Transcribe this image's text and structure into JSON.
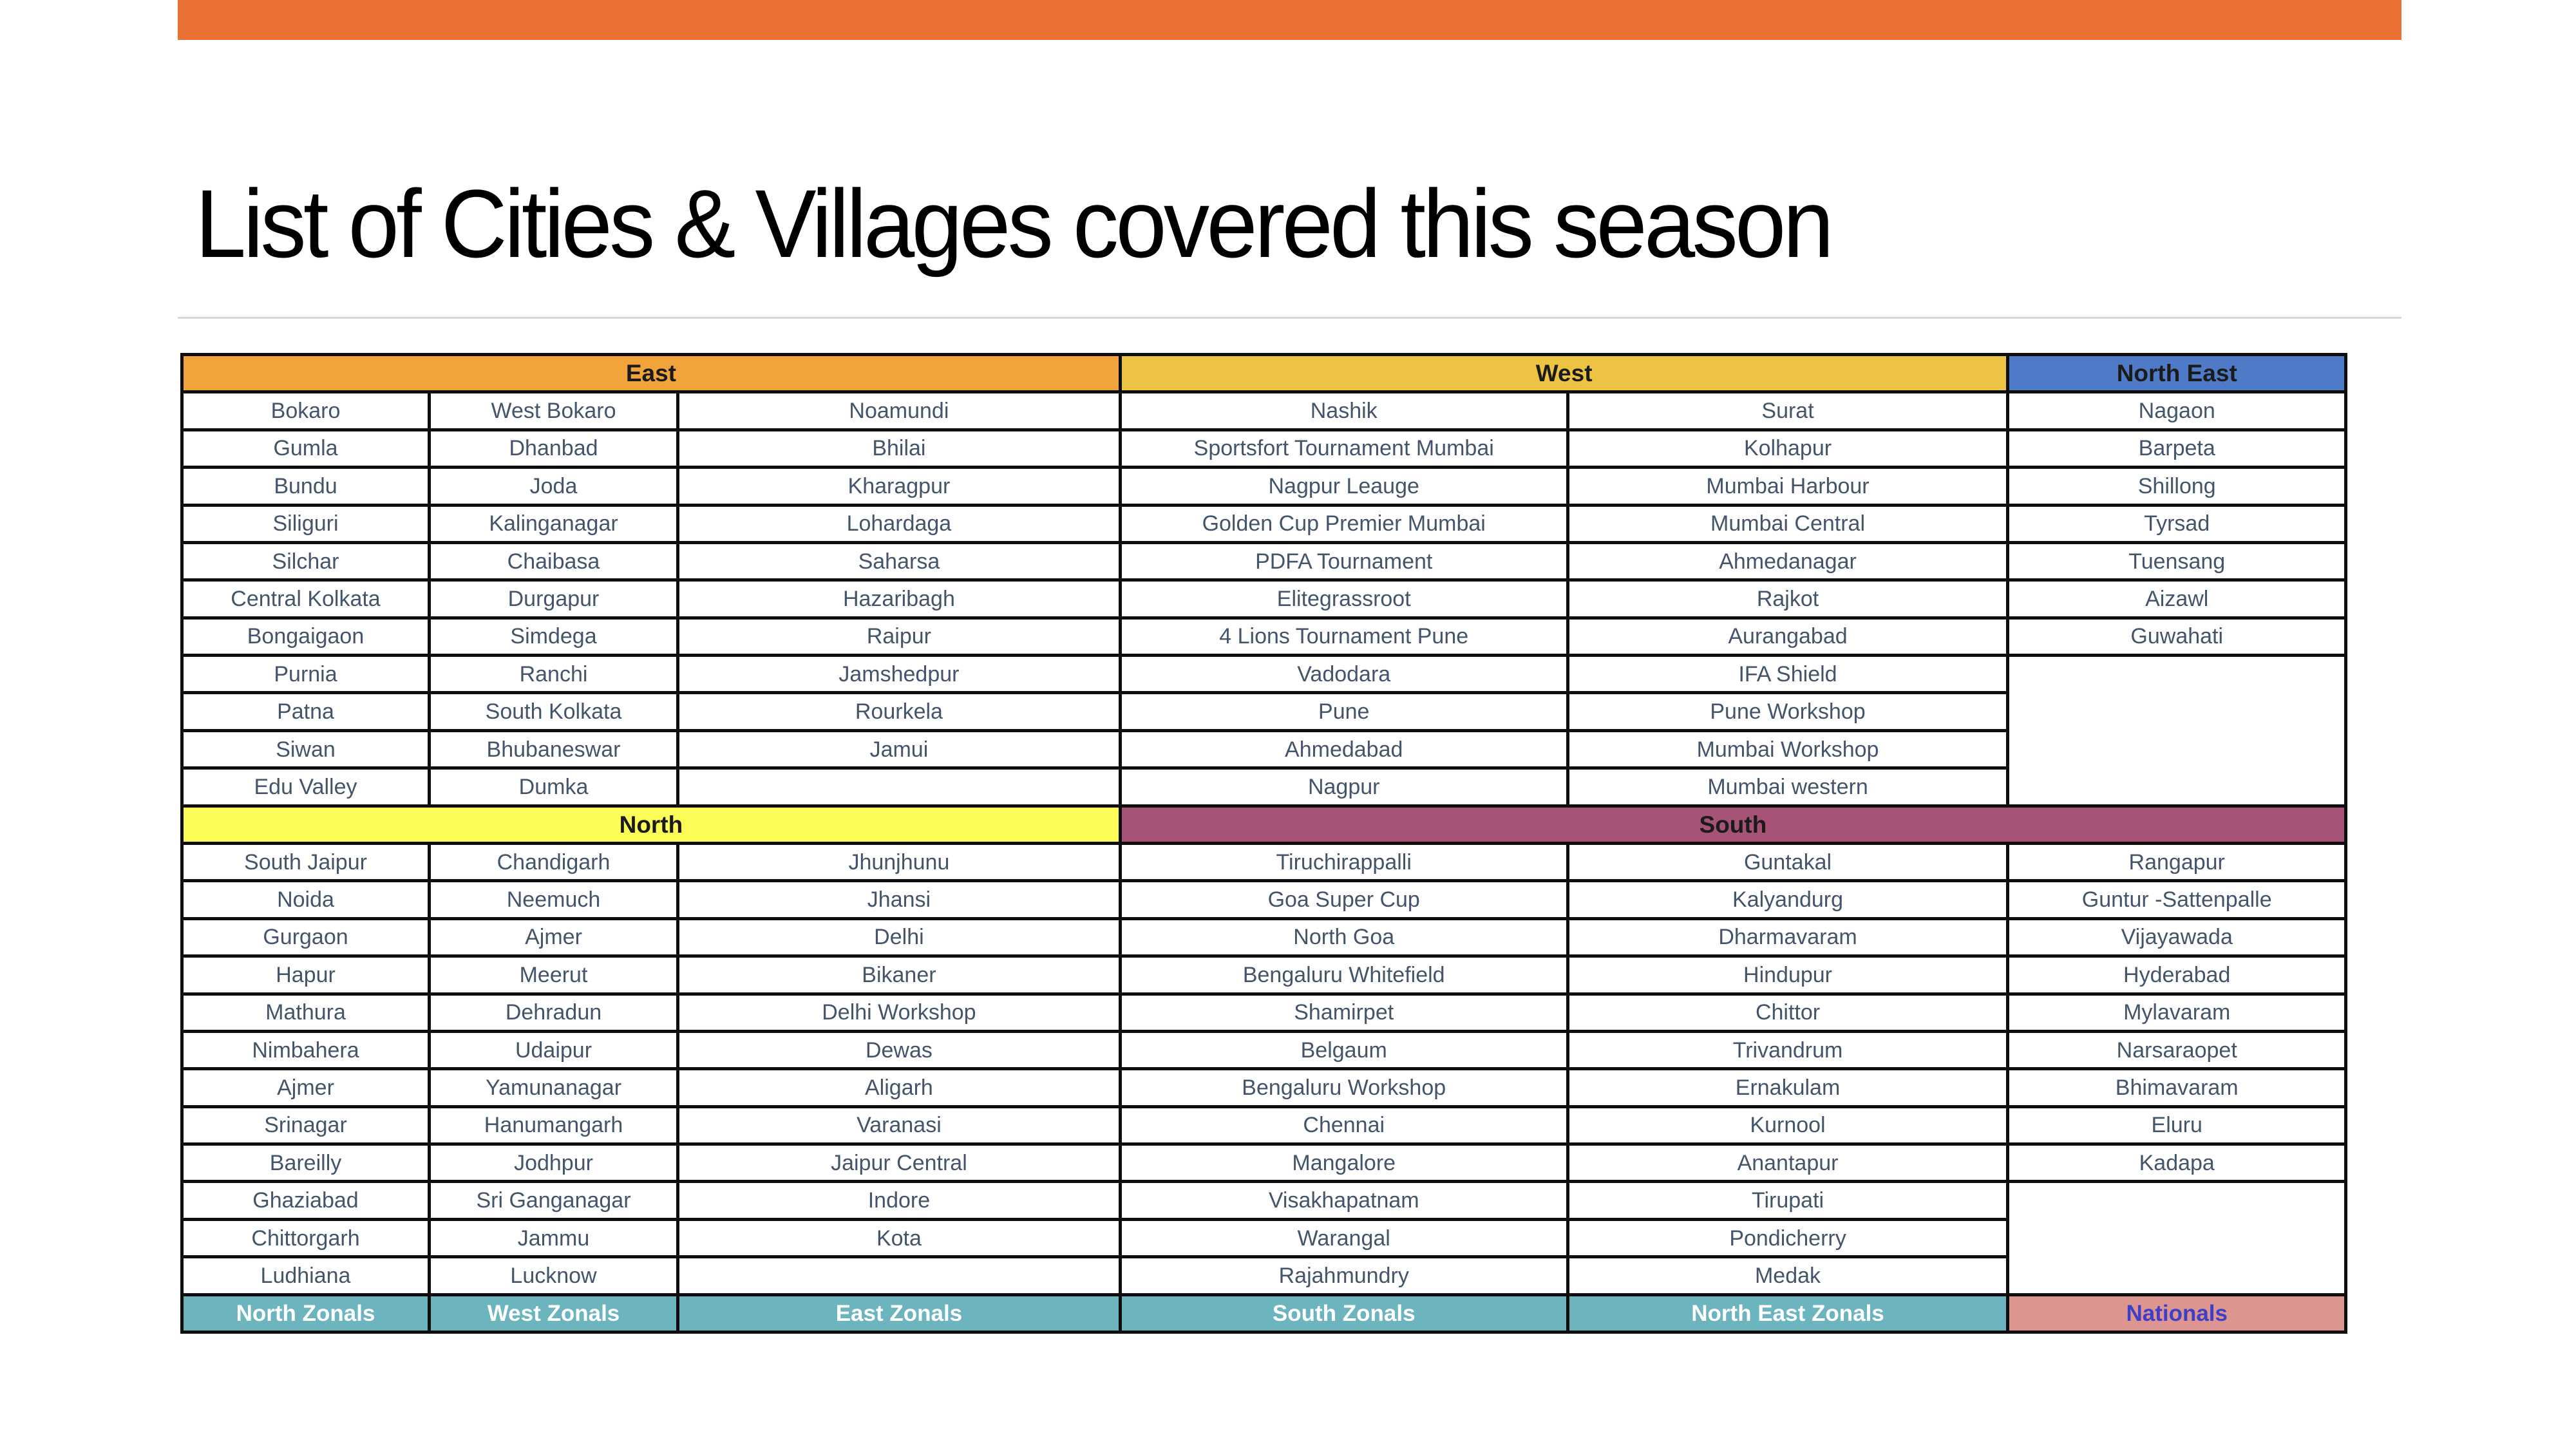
{
  "slide": {
    "title": "List of Cities & Villages covered this season"
  },
  "colors": {
    "top_bar": "#E97132",
    "east_header": "#F2A43C",
    "west_header": "#ECC343",
    "north_east_header": "#4E7AC8",
    "north_header": "#FDFD57",
    "south_header": "#A65377",
    "zonal_bg": "#6CB5BF",
    "nationals_bg": "#DC968F",
    "nationals_text": "#3E3EC7",
    "cell_text": "#44546A",
    "border": "#0E0E0E"
  },
  "table": {
    "band1": {
      "headers": [
        {
          "name": "east",
          "label": "East",
          "col_start": 1,
          "col_span": 3
        },
        {
          "name": "west",
          "label": "West",
          "col_start": 4,
          "col_span": 2
        },
        {
          "name": "north-east",
          "label": "North East",
          "col_start": 6,
          "col_span": 1
        }
      ],
      "row_count": 11,
      "columns": [
        [
          "Bokaro",
          "Gumla",
          "Bundu",
          "Siliguri",
          "Silchar",
          "Central Kolkata",
          "Bongaigaon",
          "Purnia",
          "Patna",
          "Siwan",
          "Edu Valley"
        ],
        [
          "West Bokaro",
          "Dhanbad",
          "Joda",
          "Kalinganagar",
          "Chaibasa",
          "Durgapur",
          "Simdega",
          "Ranchi",
          "South Kolkata",
          "Bhubaneswar",
          "Dumka"
        ],
        [
          "Noamundi",
          "Bhilai",
          "Kharagpur",
          "Lohardaga",
          "Saharsa",
          "Hazaribagh",
          "Raipur",
          "Jamshedpur",
          "Rourkela",
          "Jamui",
          ""
        ],
        [
          "Nashik",
          "Sportsfort Tournament Mumbai",
          "Nagpur Leauge",
          "Golden Cup Premier Mumbai",
          "PDFA Tournament",
          "Elitegrassroot",
          "4 Lions Tournament Pune",
          "Vadodara",
          "Pune",
          "Ahmedabad",
          "Nagpur"
        ],
        [
          "Surat",
          "Kolhapur",
          "Mumbai Harbour",
          "Mumbai Central",
          "Ahmedanagar",
          "Rajkot",
          "Aurangabad",
          "IFA Shield",
          "Pune Workshop",
          "Mumbai Workshop",
          "Mumbai western"
        ],
        [
          "Nagaon",
          "Barpeta",
          "Shillong",
          "Tyrsad",
          "Tuensang",
          "Aizawl",
          "Guwahati"
        ]
      ],
      "merged_empty": {
        "col": 6,
        "from_row": 8,
        "row_span": 4
      }
    },
    "band2": {
      "headers": [
        {
          "name": "north",
          "label": "North",
          "col_start": 1,
          "col_span": 3
        },
        {
          "name": "south",
          "label": "South",
          "col_start": 4,
          "col_span": 3
        }
      ],
      "row_count": 12,
      "columns": [
        [
          "South Jaipur",
          "Noida",
          "Gurgaon",
          "Hapur",
          "Mathura",
          "Nimbahera",
          "Ajmer",
          "Srinagar",
          "Bareilly",
          "Ghaziabad",
          "Chittorgarh",
          "Ludhiana"
        ],
        [
          "Chandigarh",
          "Neemuch",
          "Ajmer",
          "Meerut",
          "Dehradun",
          "Udaipur",
          "Yamunanagar",
          "Hanumangarh",
          "Jodhpur",
          "Sri Ganganagar",
          "Jammu",
          "Lucknow"
        ],
        [
          "Jhunjhunu",
          "Jhansi",
          "Delhi",
          "Bikaner",
          "Delhi Workshop",
          "Dewas",
          "Aligarh",
          "Varanasi",
          "Jaipur Central",
          "Indore",
          "Kota",
          ""
        ],
        [
          "Tiruchirappalli",
          "Goa Super Cup",
          "North Goa",
          "Bengaluru Whitefield",
          "Shamirpet",
          "Belgaum",
          "Bengaluru Workshop",
          "Chennai",
          "Mangalore",
          "Visakhapatnam",
          "Warangal",
          "Rajahmundry"
        ],
        [
          "Guntakal",
          "Kalyandurg",
          "Dharmavaram",
          "Hindupur",
          "Chittor",
          "Trivandrum",
          "Ernakulam",
          "Kurnool",
          "Anantapur",
          "Tirupati",
          "Pondicherry",
          "Medak"
        ],
        [
          "Rangapur",
          "Guntur -Sattenpalle",
          "Vijayawada",
          "Hyderabad",
          "Mylavaram",
          "Narsaraopet",
          "Bhimavaram",
          "Eluru",
          "Kadapa"
        ]
      ],
      "merged_empty": {
        "col": 6,
        "from_row": 10,
        "row_span": 3
      }
    },
    "footer": [
      {
        "name": "north-zonals",
        "label": "North Zonals",
        "type": "zonal"
      },
      {
        "name": "west-zonals",
        "label": "West Zonals",
        "type": "zonal"
      },
      {
        "name": "east-zonals",
        "label": "East Zonals",
        "type": "zonal"
      },
      {
        "name": "south-zonals",
        "label": "South Zonals",
        "type": "zonal"
      },
      {
        "name": "north-east-zonals",
        "label": "North East Zonals",
        "type": "zonal"
      },
      {
        "name": "nationals",
        "label": "Nationals",
        "type": "nationals"
      }
    ]
  }
}
